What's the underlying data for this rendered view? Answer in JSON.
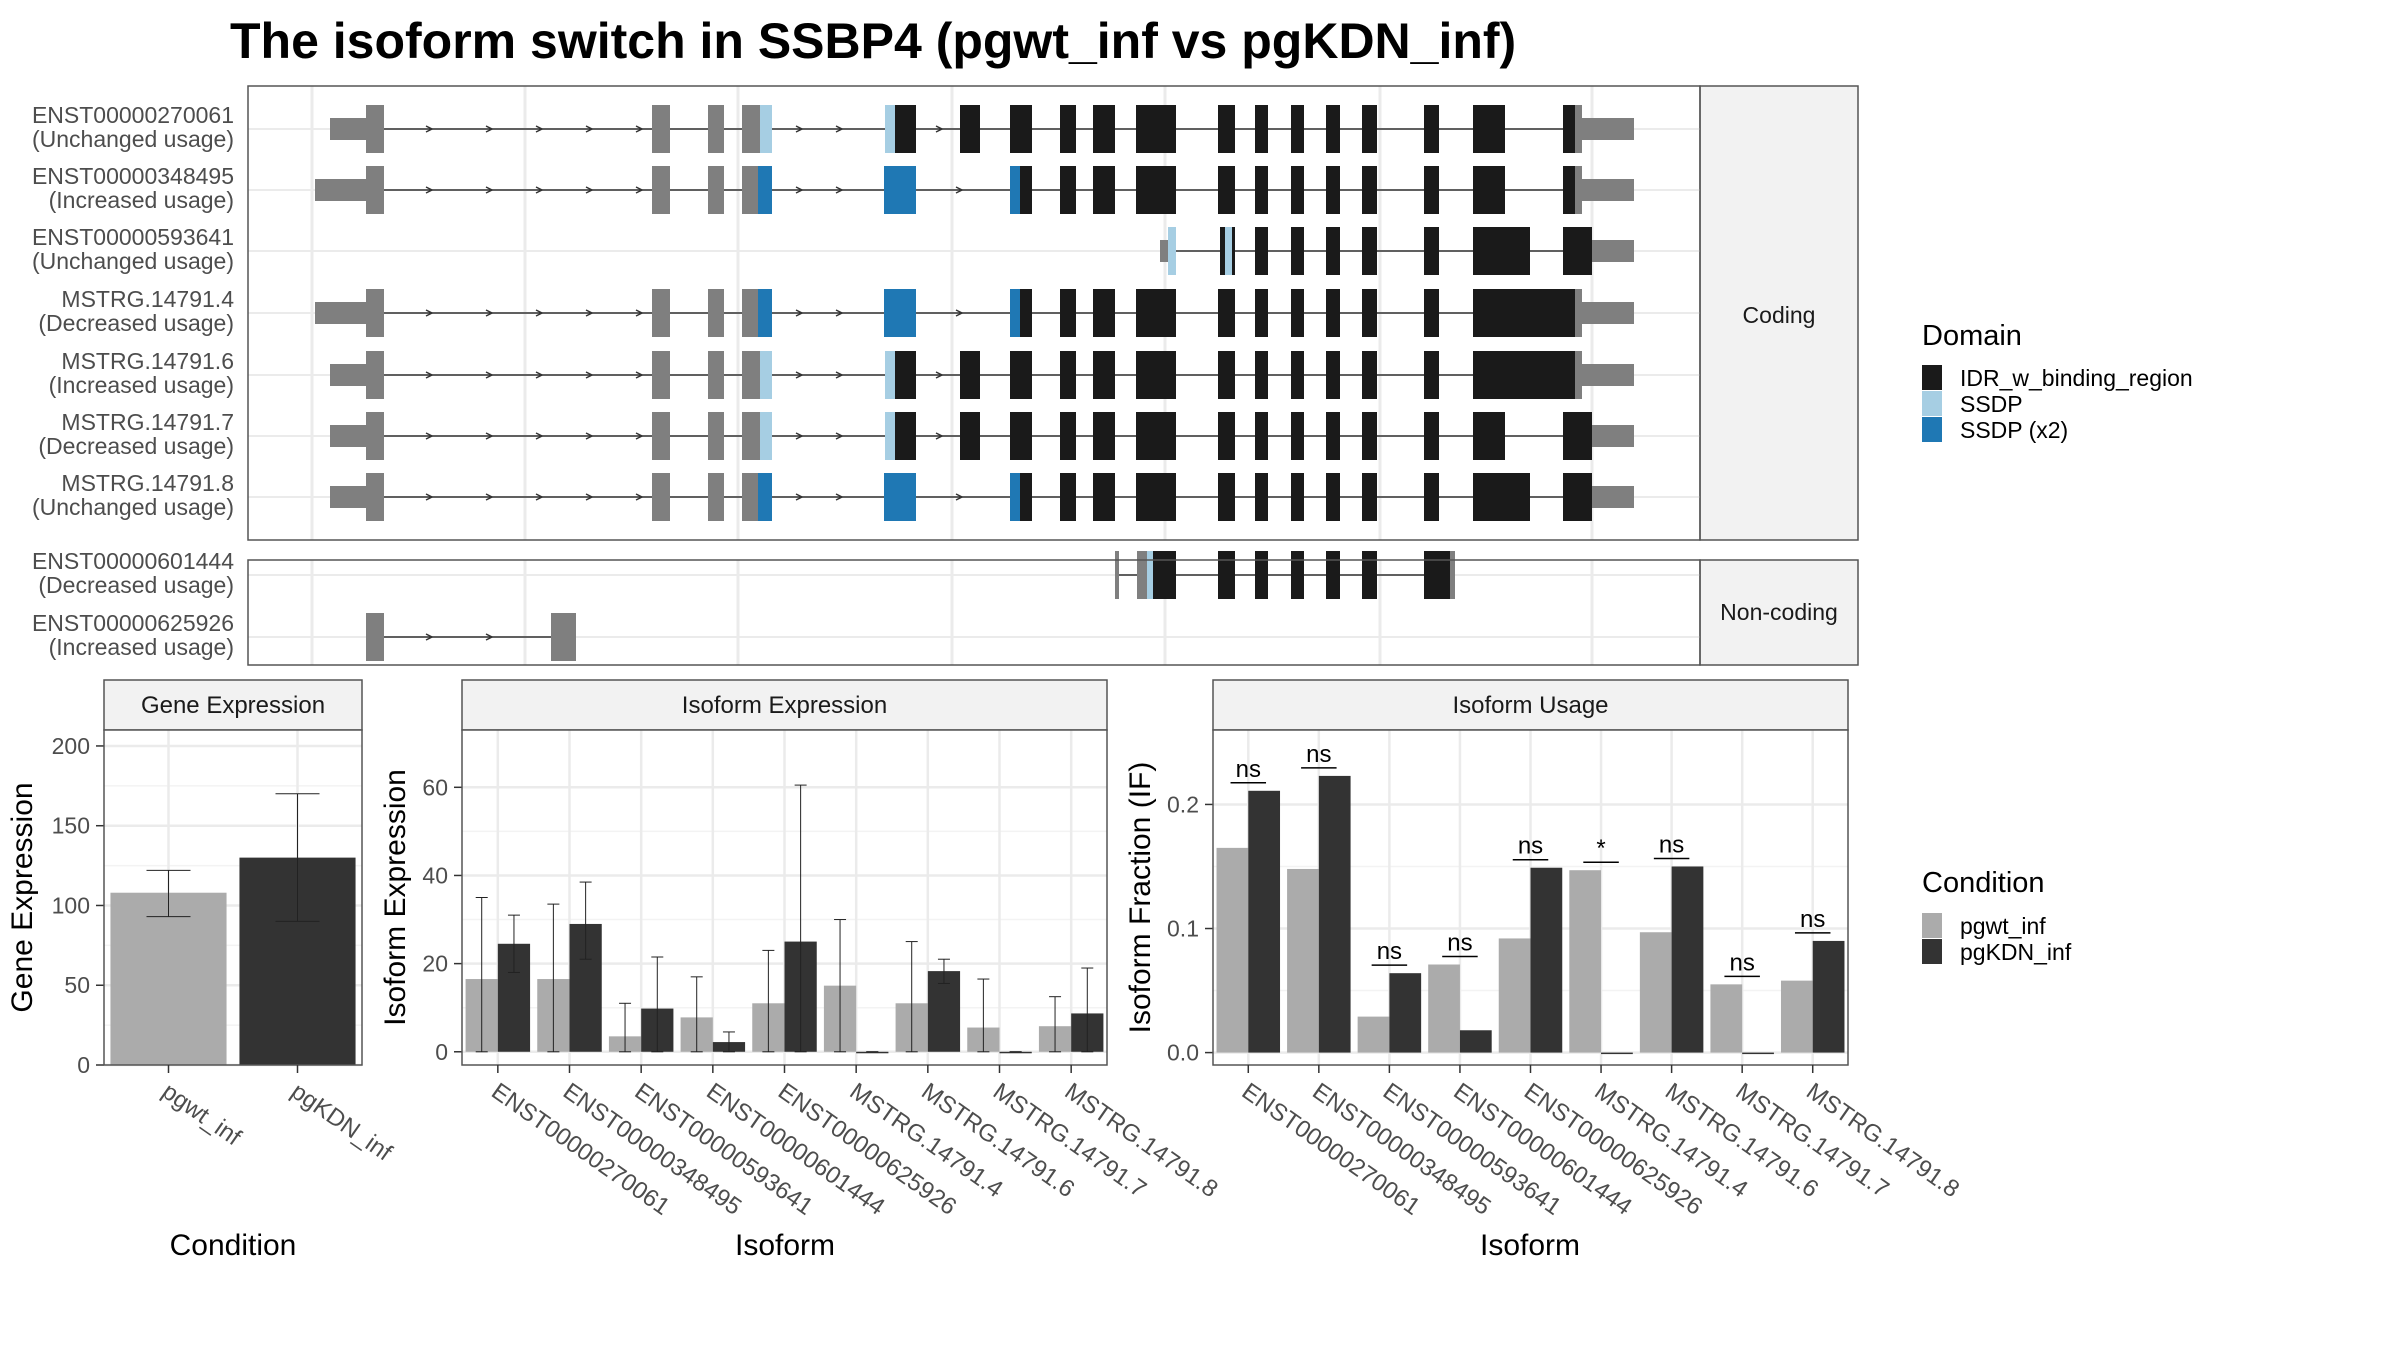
{
  "title": "The isoform switch in SSBP4 (pgwt_inf vs pgKDN_inf)",
  "colors": {
    "IDR_w_binding_region": "#1a1a1a",
    "SSDP": "#a6cee3",
    "SSDP_x2": "#1f78b4",
    "noncoding": "#7f7f7f",
    "pgwt_inf": "#ababab",
    "pgKDN_inf": "#333333"
  },
  "structure": {
    "facets": [
      {
        "label": "Coding",
        "isoforms": [
          {
            "name": "ENST00000270061",
            "usage": "(Unchanged usage)"
          },
          {
            "name": "ENST00000348495",
            "usage": "(Increased usage)"
          },
          {
            "name": "ENST00000593641",
            "usage": "(Unchanged usage)"
          },
          {
            "name": "MSTRG.14791.4",
            "usage": "(Decreased usage)"
          },
          {
            "name": "MSTRG.14791.6",
            "usage": "(Increased usage)"
          },
          {
            "name": "MSTRG.14791.7",
            "usage": "(Decreased usage)"
          },
          {
            "name": "MSTRG.14791.8",
            "usage": "(Unchanged usage)"
          }
        ]
      },
      {
        "label": "Non-coding",
        "isoforms": [
          {
            "name": "ENST00000601444",
            "usage": "(Decreased usage)"
          },
          {
            "name": "ENST00000625926",
            "usage": "(Increased usage)"
          }
        ]
      }
    ]
  },
  "legend_domain": {
    "title": "Domain",
    "items": [
      {
        "label": "IDR_w_binding_region",
        "color": "#1a1a1a"
      },
      {
        "label": "SSDP",
        "color": "#a6cee3"
      },
      {
        "label": "SSDP (x2)",
        "color": "#1f78b4"
      }
    ]
  },
  "legend_condition": {
    "title": "Condition",
    "items": [
      {
        "label": "pgwt_inf",
        "color": "#ababab"
      },
      {
        "label": "pgKDN_inf",
        "color": "#333333"
      }
    ]
  },
  "chart_data": [
    {
      "type": "bar",
      "title": "Gene Expression",
      "xlabel": "Condition",
      "ylabel": "Gene Expression",
      "ylim": [
        0,
        210
      ],
      "yticks": [
        0,
        50,
        100,
        150,
        200
      ],
      "categories": [
        "pgwt_inf",
        "pgKDN_inf"
      ],
      "values": [
        108,
        130
      ],
      "error": [
        [
          93,
          122
        ],
        [
          90,
          170
        ]
      ]
    },
    {
      "type": "bar",
      "title": "Isoform Expression",
      "xlabel": "Isoform",
      "ylabel": "Isoform Expression",
      "ylim": [
        -3,
        73
      ],
      "yticks": [
        0,
        20,
        40,
        60
      ],
      "categories": [
        "ENST00000270061",
        "ENST00000348495",
        "ENST00000593641",
        "ENST00000601444",
        "ENST00000625926",
        "MSTRG.14791.4",
        "MSTRG.14791.6",
        "MSTRG.14791.7",
        "MSTRG.14791.8"
      ],
      "series": [
        {
          "name": "pgwt_inf",
          "values": [
            16.5,
            16.5,
            3.5,
            7.8,
            11,
            15,
            11,
            5.5,
            5.8
          ],
          "error": [
            [
              0,
              35
            ],
            [
              0,
              33.5
            ],
            [
              0,
              11
            ],
            [
              0,
              17
            ],
            [
              0,
              23
            ],
            [
              0,
              30
            ],
            [
              0,
              25
            ],
            [
              0,
              16.5
            ],
            [
              0,
              12.5
            ]
          ]
        },
        {
          "name": "pgKDN_inf",
          "values": [
            24.5,
            29,
            9.8,
            2.2,
            25,
            0,
            18.3,
            0,
            8.7
          ],
          "error": [
            [
              18,
              31
            ],
            [
              21,
              38.5
            ],
            [
              0,
              21.5
            ],
            [
              0,
              4.5
            ],
            [
              0,
              60.5
            ],
            [
              0,
              0
            ],
            [
              15.5,
              21
            ],
            [
              0,
              0
            ],
            [
              0,
              19
            ]
          ]
        }
      ]
    },
    {
      "type": "bar",
      "title": "Isoform Usage",
      "xlabel": "Isoform",
      "ylabel": "Isoform Fraction (IF)",
      "ylim": [
        -0.01,
        0.26
      ],
      "yticks": [
        0.0,
        0.1,
        0.2
      ],
      "ytick_labels": [
        "0.0",
        "0.1",
        "0.2"
      ],
      "categories": [
        "ENST00000270061",
        "ENST00000348495",
        "ENST00000593641",
        "ENST00000601444",
        "ENST00000625926",
        "MSTRG.14791.4",
        "MSTRG.14791.6",
        "MSTRG.14791.7",
        "MSTRG.14791.8"
      ],
      "series": [
        {
          "name": "pgwt_inf",
          "values": [
            0.165,
            0.148,
            0.029,
            0.071,
            0.092,
            0.147,
            0.097,
            0.055,
            0.058
          ]
        },
        {
          "name": "pgKDN_inf",
          "values": [
            0.211,
            0.223,
            0.064,
            0.018,
            0.149,
            0.0,
            0.15,
            0.0,
            0.09
          ]
        }
      ],
      "significance": [
        "ns",
        "ns",
        "ns",
        "ns",
        "ns",
        "*",
        "ns",
        "ns",
        "ns"
      ]
    }
  ]
}
